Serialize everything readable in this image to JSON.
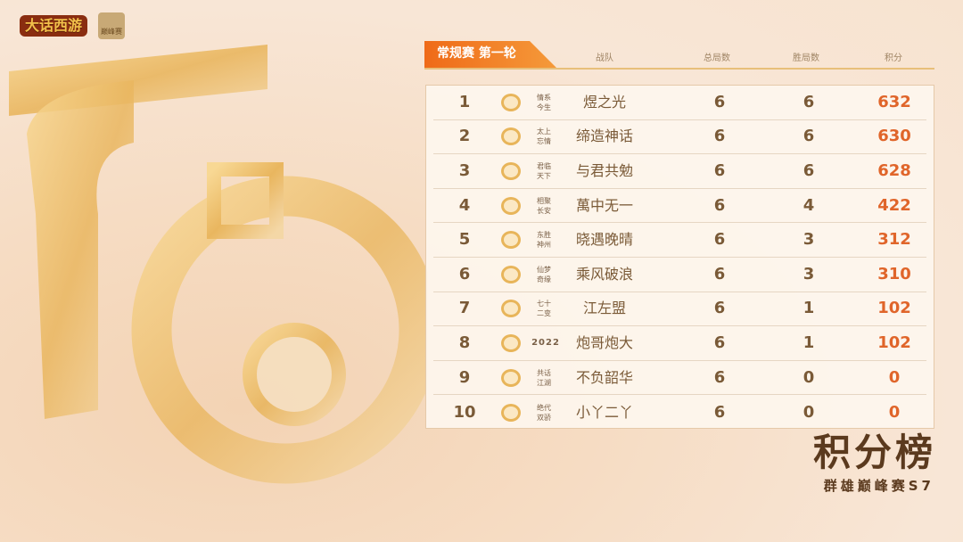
{
  "logos": {
    "game": "大话西游",
    "event": "巅峰赛"
  },
  "header": {
    "tab": "常规赛 第一轮",
    "columns": [
      "战队",
      "总局数",
      "胜局数",
      "积分"
    ]
  },
  "colors": {
    "accent": "#ef6a18",
    "points": "#e0652a",
    "text": "#7a5a37"
  },
  "rows": [
    {
      "rank": "1",
      "tag": "情系今生",
      "name": "煜之光",
      "total": "6",
      "wins": "6",
      "points": "632"
    },
    {
      "rank": "2",
      "tag": "太上忘情",
      "name": "缔造神话",
      "total": "6",
      "wins": "6",
      "points": "630"
    },
    {
      "rank": "3",
      "tag": "君临天下",
      "name": "与君共勉",
      "total": "6",
      "wins": "6",
      "points": "628"
    },
    {
      "rank": "4",
      "tag": "相聚长安",
      "name": "萬中无一",
      "total": "6",
      "wins": "4",
      "points": "422"
    },
    {
      "rank": "5",
      "tag": "东胜神州",
      "name": "晓遇晚晴",
      "total": "6",
      "wins": "3",
      "points": "312"
    },
    {
      "rank": "6",
      "tag": "仙梦奇缘",
      "name": "乘风破浪",
      "total": "6",
      "wins": "3",
      "points": "310"
    },
    {
      "rank": "7",
      "tag": "七十二变",
      "name": "江左盟",
      "total": "6",
      "wins": "1",
      "points": "102"
    },
    {
      "rank": "8",
      "tag": "2022",
      "name": "炮哥炮大",
      "total": "6",
      "wins": "1",
      "points": "102"
    },
    {
      "rank": "9",
      "tag": "共话江湖",
      "name": "不负韶华",
      "total": "6",
      "wins": "0",
      "points": "0"
    },
    {
      "rank": "10",
      "tag": "绝代双骄",
      "name": "小丫二丫",
      "total": "6",
      "wins": "0",
      "points": "0"
    }
  ],
  "footer": {
    "title": "积分榜",
    "subtitle": "群雄巅峰赛S7"
  }
}
